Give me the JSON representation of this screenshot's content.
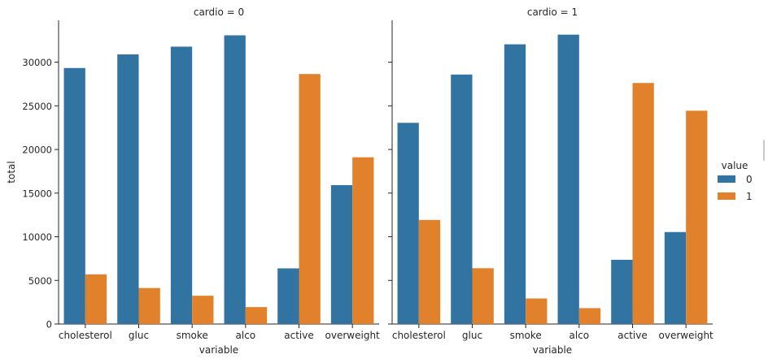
{
  "chart_data": {
    "type": "bar",
    "x_label": "variable",
    "y_label": "total",
    "categories": [
      "cholesterol",
      "gluc",
      "smoke",
      "alco",
      "active",
      "overweight"
    ],
    "y_ticks": [
      0,
      5000,
      10000,
      15000,
      20000,
      25000,
      30000
    ],
    "y_tick_labels": [
      "0",
      "5000",
      "10000",
      "15000",
      "20000",
      "25000",
      "30000"
    ],
    "ylim": [
      0,
      34800
    ],
    "legend": {
      "title": "value",
      "placement": "right",
      "entries": [
        {
          "label": "0",
          "color": "#3274a1"
        },
        {
          "label": "1",
          "color": "#e1812c"
        }
      ]
    },
    "panels": [
      {
        "title": "cardio = 0",
        "series": [
          {
            "name": "0",
            "color": "#3274a1",
            "values": [
              29330,
              30894,
              31781,
              33080,
              6378,
              15915
            ]
          },
          {
            "name": "1",
            "color": "#e1812c",
            "values": [
              5691,
              4127,
              3240,
              1941,
              28643,
              19106
            ]
          }
        ]
      },
      {
        "title": "cardio = 1",
        "series": [
          {
            "name": "0",
            "color": "#3274a1",
            "values": [
              23055,
              28585,
              32050,
              33156,
              7361,
              10539
            ]
          },
          {
            "name": "1",
            "color": "#e1812c",
            "values": [
              11924,
              6394,
              2929,
              1823,
              27618,
              24440
            ]
          }
        ]
      }
    ]
  }
}
